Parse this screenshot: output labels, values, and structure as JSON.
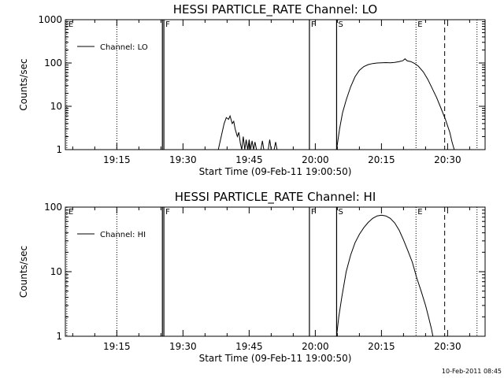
{
  "footer_timestamp": "10-Feb-2011 08:45",
  "chart_data": [
    {
      "type": "line",
      "title": "HESSI PARTICLE_RATE Channel: LO",
      "xlabel": "Start Time (09-Feb-11 19:00:50)",
      "ylabel": "Counts/sec",
      "yscale": "log",
      "ylim": [
        1,
        1000
      ],
      "yticks": [
        {
          "value": 1,
          "label": "1"
        },
        {
          "value": 10,
          "label": "10"
        },
        {
          "value": 100,
          "label": "100"
        },
        {
          "value": 1000,
          "label": "1000"
        }
      ],
      "xlim": [
        "19:03:20",
        "20:38:30"
      ],
      "xticks": [
        {
          "value": "19:15",
          "label": "19:15"
        },
        {
          "value": "19:30",
          "label": "19:30"
        },
        {
          "value": "19:45",
          "label": "19:45"
        },
        {
          "value": "20:00",
          "label": "20:00"
        },
        {
          "value": "20:15",
          "label": "20:15"
        },
        {
          "value": "20:30",
          "label": "20:30"
        }
      ],
      "legend": {
        "entry": "Channel: LO",
        "placement": "top-left"
      },
      "markers": [
        {
          "time": "19:03:40",
          "label": "E",
          "style": "dotted"
        },
        {
          "time": "19:15:00",
          "label": "",
          "style": "dotted"
        },
        {
          "time": "19:25:20",
          "label": "",
          "style": "solid"
        },
        {
          "time": "19:25:40",
          "label": "F",
          "style": "solid"
        },
        {
          "time": "19:58:40",
          "label": "F",
          "style": "solid"
        },
        {
          "time": "20:04:50",
          "label": "S",
          "style": "solid"
        },
        {
          "time": "20:22:50",
          "label": "E",
          "style": "dotted"
        },
        {
          "time": "20:29:20",
          "label": "",
          "style": "dashed"
        },
        {
          "time": "20:36:40",
          "label": "",
          "style": "dotted"
        }
      ],
      "series": [
        {
          "segments": [
            [
              [
                "19:38:00",
                1
              ],
              [
                "19:38:40",
                2
              ],
              [
                "19:39:20",
                4
              ],
              [
                "19:39:50",
                5.5
              ],
              [
                "19:40:20",
                5
              ],
              [
                "19:40:40",
                6
              ],
              [
                "19:41:10",
                4
              ],
              [
                "19:41:30",
                4.5
              ],
              [
                "19:41:50",
                3
              ],
              [
                "19:42:20",
                2
              ],
              [
                "19:42:40",
                2.5
              ],
              [
                "19:43:00",
                1.4
              ],
              [
                "19:43:20",
                1
              ],
              [
                "19:43:40",
                2
              ],
              [
                "19:44:00",
                1
              ],
              [
                "19:44:20",
                1.7
              ],
              [
                "19:44:40",
                1
              ],
              [
                "19:45:00",
                1.7
              ],
              [
                "19:45:20",
                1
              ],
              [
                "19:45:40",
                1.6
              ],
              [
                "19:46:00",
                1
              ],
              [
                "19:46:20",
                1.5
              ],
              [
                "19:46:40",
                1
              ],
              [
                "19:47:40",
                1
              ],
              [
                "19:48:00",
                1.6
              ],
              [
                "19:48:20",
                1
              ],
              [
                "19:49:20",
                1
              ],
              [
                "19:49:40",
                1.7
              ],
              [
                "19:50:00",
                1
              ],
              [
                "19:50:40",
                1
              ],
              [
                "19:51:00",
                1.5
              ],
              [
                "19:51:20",
                1
              ]
            ],
            [
              [
                "20:04:50",
                1
              ],
              [
                "20:05:30",
                3
              ],
              [
                "20:06:10",
                7
              ],
              [
                "20:07:00",
                14
              ],
              [
                "20:08:00",
                28
              ],
              [
                "20:09:00",
                48
              ],
              [
                "20:10:00",
                68
              ],
              [
                "20:11:00",
                83
              ],
              [
                "20:12:00",
                92
              ],
              [
                "20:13:00",
                97
              ],
              [
                "20:14:00",
                100
              ],
              [
                "20:15:00",
                101
              ],
              [
                "20:16:00",
                102
              ],
              [
                "20:17:00",
                101
              ],
              [
                "20:18:00",
                103
              ],
              [
                "20:19:00",
                108
              ],
              [
                "20:19:50",
                113
              ],
              [
                "20:20:20",
                125
              ],
              [
                "20:20:50",
                112
              ],
              [
                "20:21:40",
                108
              ],
              [
                "20:22:30",
                98
              ],
              [
                "20:23:20",
                85
              ],
              [
                "20:24:30",
                62
              ],
              [
                "20:25:30",
                42
              ],
              [
                "20:26:30",
                26
              ],
              [
                "20:27:30",
                16
              ],
              [
                "20:28:30",
                9
              ],
              [
                "20:29:30",
                5
              ],
              [
                "20:30:30",
                2.5
              ],
              [
                "20:31:00",
                1.5
              ],
              [
                "20:31:30",
                1
              ]
            ]
          ]
        }
      ]
    },
    {
      "type": "line",
      "title": "HESSI PARTICLE_RATE Channel: HI",
      "xlabel": "Start Time (09-Feb-11 19:00:50)",
      "ylabel": "Counts/sec",
      "yscale": "log",
      "ylim": [
        1,
        100
      ],
      "yticks": [
        {
          "value": 1,
          "label": "1"
        },
        {
          "value": 10,
          "label": "10"
        },
        {
          "value": 100,
          "label": "100"
        }
      ],
      "xlim": [
        "19:03:20",
        "20:38:30"
      ],
      "xticks": [
        {
          "value": "19:15",
          "label": "19:15"
        },
        {
          "value": "19:30",
          "label": "19:30"
        },
        {
          "value": "19:45",
          "label": "19:45"
        },
        {
          "value": "20:00",
          "label": "20:00"
        },
        {
          "value": "20:15",
          "label": "20:15"
        },
        {
          "value": "20:30",
          "label": "20:30"
        }
      ],
      "legend": {
        "entry": "Channel: HI",
        "placement": "top-left"
      },
      "markers": [
        {
          "time": "19:03:40",
          "label": "E",
          "style": "dotted"
        },
        {
          "time": "19:15:00",
          "label": "",
          "style": "dotted"
        },
        {
          "time": "19:25:20",
          "label": "",
          "style": "solid"
        },
        {
          "time": "19:25:40",
          "label": "F",
          "style": "solid"
        },
        {
          "time": "19:58:40",
          "label": "F",
          "style": "solid"
        },
        {
          "time": "20:04:50",
          "label": "S",
          "style": "solid"
        },
        {
          "time": "20:22:50",
          "label": "E",
          "style": "dotted"
        },
        {
          "time": "20:29:20",
          "label": "",
          "style": "dashed"
        },
        {
          "time": "20:36:40",
          "label": "",
          "style": "dotted"
        }
      ],
      "series": [
        {
          "segments": [
            [
              [
                "20:04:50",
                1
              ],
              [
                "20:05:20",
                2
              ],
              [
                "20:06:00",
                4
              ],
              [
                "20:07:00",
                10
              ],
              [
                "20:08:00",
                18
              ],
              [
                "20:09:00",
                28
              ],
              [
                "20:10:00",
                38
              ],
              [
                "20:11:00",
                48
              ],
              [
                "20:12:00",
                58
              ],
              [
                "20:13:00",
                67
              ],
              [
                "20:14:00",
                73
              ],
              [
                "20:15:00",
                75
              ],
              [
                "20:16:00",
                73
              ],
              [
                "20:17:00",
                67
              ],
              [
                "20:18:00",
                57
              ],
              [
                "20:19:00",
                44
              ],
              [
                "20:20:00",
                31
              ],
              [
                "20:21:00",
                21
              ],
              [
                "20:22:00",
                14
              ],
              [
                "20:23:00",
                8
              ],
              [
                "20:24:00",
                5
              ],
              [
                "20:25:00",
                3
              ],
              [
                "20:25:40",
                2
              ],
              [
                "20:26:20",
                1.3
              ],
              [
                "20:26:40",
                1
              ]
            ]
          ]
        }
      ]
    }
  ]
}
